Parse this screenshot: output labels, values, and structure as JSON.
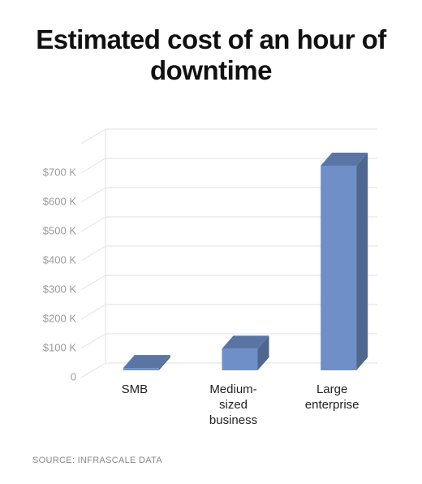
{
  "chart_data": {
    "type": "bar3d",
    "title": "Estimated cost of an hour of downtime",
    "categories": [
      "SMB",
      "Medium-sized business",
      "Large enterprise"
    ],
    "values": [
      8,
      74,
      700
    ],
    "color": "#6e8fc7",
    "ylim": [
      0,
      800
    ],
    "yticks": [
      0,
      {
        "value": 100,
        "label": "$100 K"
      },
      {
        "value": 200,
        "label": "$200 K"
      },
      {
        "value": 300,
        "label": "$300 K"
      },
      {
        "value": 400,
        "label": "$400 K"
      },
      {
        "value": 500,
        "label": "$500 K"
      },
      {
        "value": 600,
        "label": "$600 K"
      },
      {
        "value": 700,
        "label": "$700 K"
      }
    ],
    "grid": true,
    "source": "SOURCE: INFRASCALE DATA"
  }
}
